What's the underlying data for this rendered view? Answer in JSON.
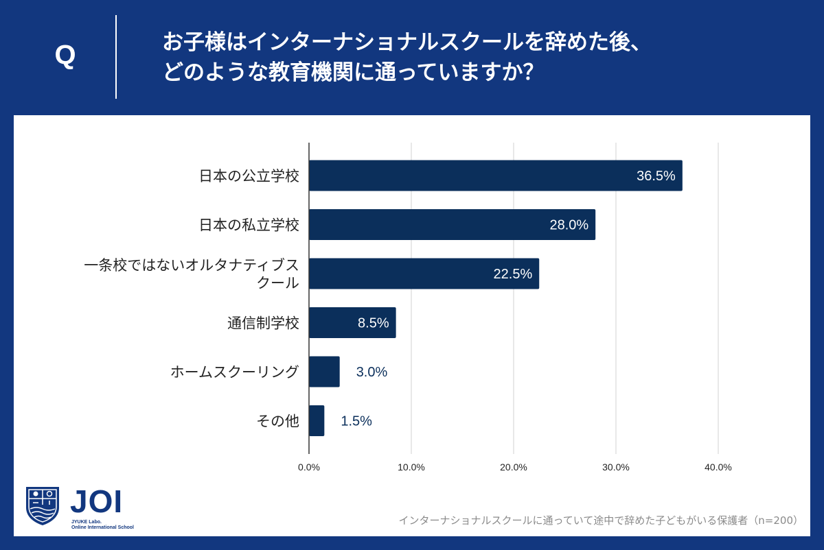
{
  "header": {
    "q_mark": "Q",
    "question_lines": [
      "お子様はインターナショナルスクールを辞めた後、",
      "どのような教育機関に通っていますか？"
    ]
  },
  "chart_data": {
    "type": "bar",
    "orientation": "horizontal",
    "categories": [
      [
        "日本の公立学校"
      ],
      [
        "日本の私立学校"
      ],
      [
        "一条校ではないオルタナティブス",
        "クール"
      ],
      [
        "通信制学校"
      ],
      [
        "ホームスクーリング"
      ],
      [
        "その他"
      ]
    ],
    "values": [
      36.5,
      28.0,
      22.5,
      8.5,
      3.0,
      1.5
    ],
    "data_labels": [
      "36.5%",
      "28.0%",
      "22.5%",
      "8.5%",
      "3.0%",
      "1.5%"
    ],
    "x_ticks": [
      "0.0%",
      "10.0%",
      "20.0%",
      "30.0%",
      "40.0%"
    ],
    "x_tick_values": [
      0,
      10,
      20,
      30,
      40
    ],
    "xlim": [
      0,
      45
    ],
    "grid": true,
    "legend": "none",
    "bar_color": "#0b2f5b",
    "label_inside_color": "#ffffff",
    "label_outside_color": "#0b2f5b"
  },
  "logo": {
    "word": "JOI",
    "sub_line1": "JYUKE Labo.",
    "sub_line2": "Online International School",
    "icon": "shield-crest-icon"
  },
  "footnote": "インターナショナルスクールに通っていて途中で辞めた子どもがいる保護者（n=200）",
  "colors": {
    "background": "#12377f",
    "panel": "#ffffff",
    "grid": "#d0d0d0",
    "text": "#222222"
  }
}
